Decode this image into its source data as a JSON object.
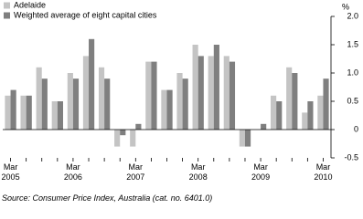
{
  "chart_data": {
    "type": "bar",
    "y_unit": "%",
    "footnote": "Source: Consumer Price Index, Australia (cat. no. 6401.0)",
    "categories": [
      "Mar\n2005",
      null,
      null,
      null,
      "Mar\n2006",
      null,
      null,
      null,
      "Mar\n2007",
      null,
      null,
      null,
      "Mar\n2008",
      null,
      null,
      null,
      "Mar\n2009",
      null,
      null,
      null,
      "Mar\n2010"
    ],
    "series": [
      {
        "name": "Adelaide",
        "color": "#c4c4c4",
        "values": [
          0.6,
          0.6,
          1.1,
          0.5,
          1.0,
          1.3,
          1.1,
          -0.3,
          -0.3,
          1.2,
          0.7,
          1.0,
          1.5,
          1.3,
          1.3,
          -0.3,
          0.0,
          0.6,
          1.1,
          0.3,
          0.6
        ]
      },
      {
        "name": "Weighted average of eight capital cities",
        "color": "#7f7f7f",
        "values": [
          0.7,
          0.6,
          0.9,
          0.5,
          0.9,
          1.6,
          0.9,
          -0.1,
          0.1,
          1.2,
          0.7,
          0.9,
          1.3,
          1.5,
          1.2,
          -0.3,
          0.1,
          0.5,
          1.0,
          0.5,
          0.9
        ]
      }
    ],
    "ylim": [
      -0.5,
      2.0
    ],
    "yticks": [
      -0.5,
      0,
      0.5,
      {
        "value": 1.0,
        "label": "1.0"
      },
      1.5,
      {
        "value": 2.0,
        "label": "2.0"
      }
    ],
    "axis_side": "right",
    "legend": "top-left"
  }
}
